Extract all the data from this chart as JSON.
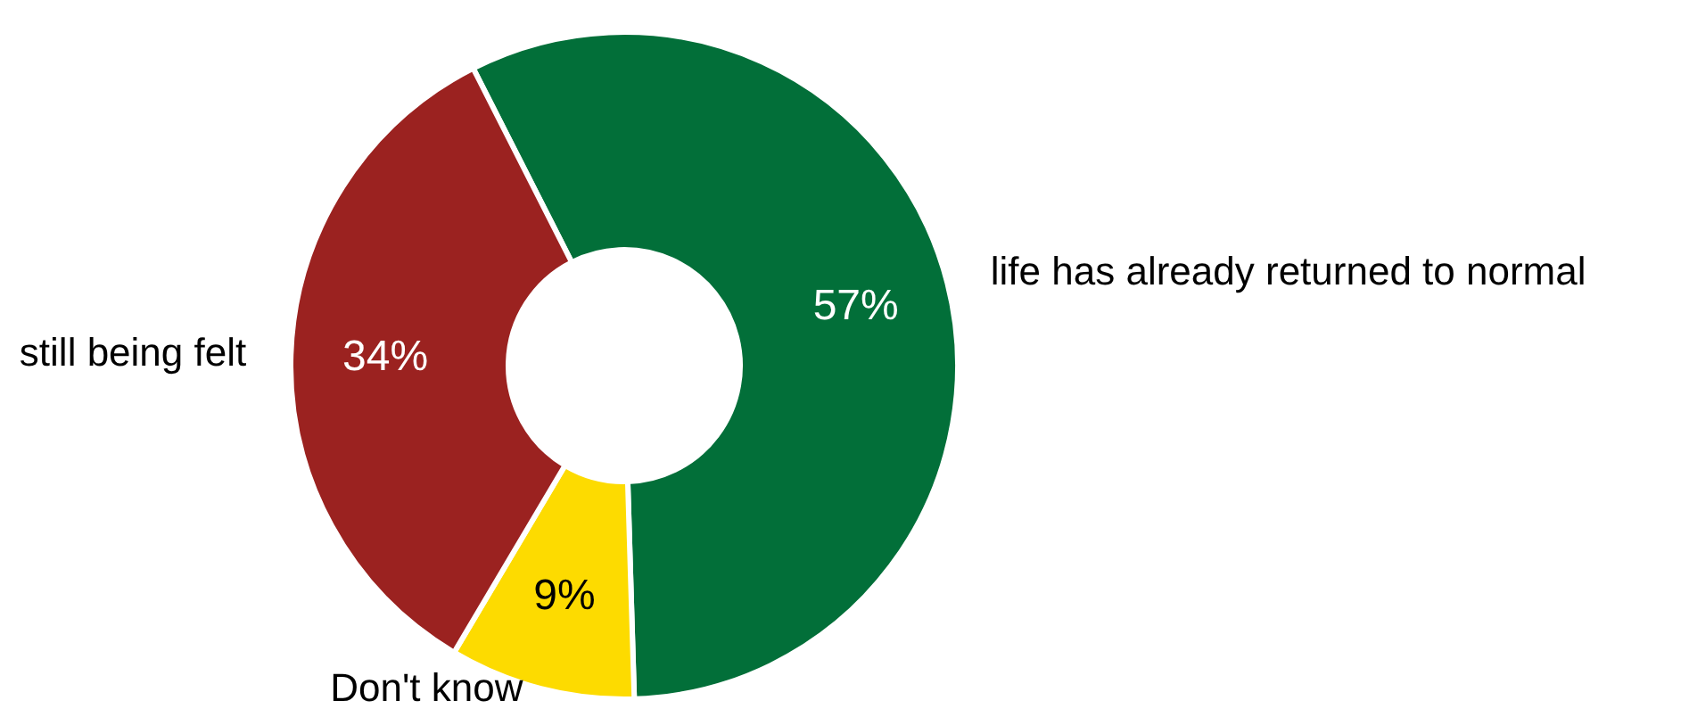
{
  "chart_data": {
    "type": "donut",
    "categories": [
      "life has already returned to normal",
      "Don't know",
      "still being felt"
    ],
    "values": [
      57,
      9,
      34
    ],
    "colors": [
      "#026f39",
      "#fddb00",
      "#9b2220"
    ],
    "value_labels": [
      "57%",
      "9%",
      "34%"
    ]
  }
}
